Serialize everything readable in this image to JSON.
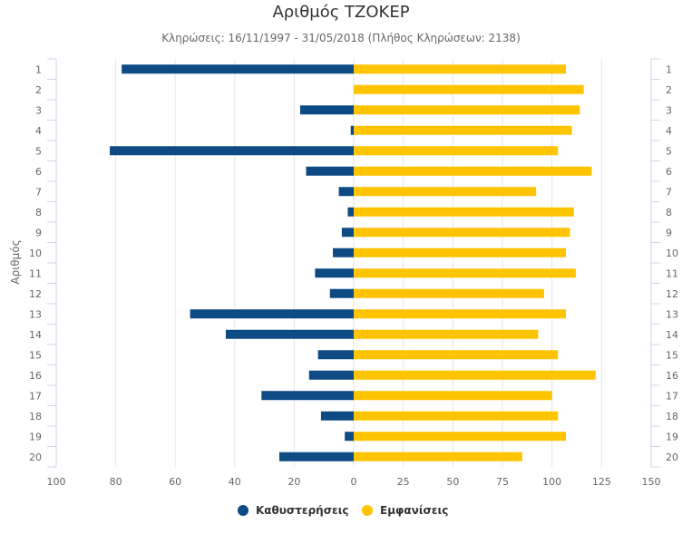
{
  "chart_data": {
    "type": "bar",
    "orientation": "horizontal",
    "title": "Αριθμός ΤΖΟΚΕΡ",
    "subtitle": "Κληρώσεις: 16/11/1997 - 31/05/2018 (Πλήθος Κληρώσεων: 2138)",
    "ylabel": "Αριθμός",
    "xlabel": "",
    "categories": [
      "1",
      "2",
      "3",
      "4",
      "5",
      "6",
      "7",
      "8",
      "9",
      "10",
      "11",
      "12",
      "13",
      "14",
      "15",
      "16",
      "17",
      "18",
      "19",
      "20"
    ],
    "left_axis": {
      "ticks": [
        100,
        80,
        60,
        40,
        20,
        0
      ],
      "xlim": [
        0,
        100
      ]
    },
    "right_axis": {
      "ticks": [
        0,
        25,
        50,
        75,
        100,
        125,
        150
      ],
      "xlim": [
        0,
        150
      ]
    },
    "series": [
      {
        "name": "Καθυστερήσεις",
        "color": "#0e4a84",
        "side": "left",
        "values": [
          78,
          0,
          18,
          1,
          82,
          16,
          5,
          2,
          4,
          7,
          13,
          8,
          55,
          43,
          12,
          15,
          31,
          11,
          3,
          25
        ]
      },
      {
        "name": "Εμφανίσεις",
        "color": "#ffc400",
        "side": "right",
        "values": [
          107,
          116,
          114,
          110,
          103,
          120,
          92,
          111,
          109,
          107,
          112,
          96,
          107,
          93,
          103,
          122,
          100,
          103,
          107,
          85
        ]
      }
    ],
    "grid": true,
    "legend_position": "bottom-center"
  }
}
